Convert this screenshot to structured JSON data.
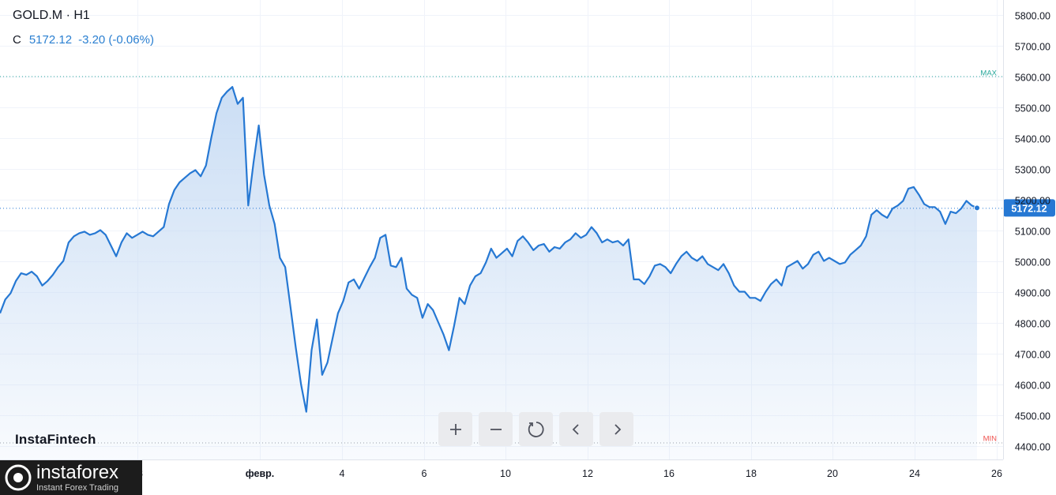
{
  "header": {
    "title": "GOLD.M · H1",
    "ohlc_label": "C",
    "last_value": "5172.12",
    "change": "-3.20 (-0.06%)"
  },
  "watermark": "InstaFintech",
  "brand": {
    "name": "instaforex",
    "tagline": "Instant Forex Trading"
  },
  "controls": [
    "zoom-in",
    "zoom-out",
    "reset",
    "scroll-left",
    "scroll-right"
  ],
  "colors": {
    "line": "#2678d3",
    "fill": "#c8dcf4",
    "max": "#26a69a",
    "min": "#ef5350",
    "grid": "#f0f3fa",
    "axis_text": "#131722"
  },
  "chart_data": {
    "type": "area",
    "ylim": [
      4400,
      5800
    ],
    "y_ticks": [
      "4400.00",
      "4500.00",
      "4600.00",
      "4700.00",
      "4800.00",
      "4900.00",
      "5000.00",
      "5100.00",
      "5200.00",
      "5300.00",
      "5400.00",
      "5500.00",
      "5600.00",
      "5700.00",
      "5800.00"
    ],
    "x_ticks": [
      "28",
      "февр.",
      "4",
      "6",
      "10",
      "12",
      "16",
      "18",
      "20",
      "24",
      "26"
    ],
    "max_label": "MAX",
    "min_label": "MIN",
    "max_value": 5600,
    "min_value": 4400,
    "last_value": 5172.12,
    "last_label": "5172.12",
    "grid": true,
    "series": [
      {
        "values": [
          4830,
          4875,
          4895,
          4935,
          4960,
          4955,
          4965,
          4950,
          4920,
          4935,
          4955,
          4980,
          5000,
          5060,
          5080,
          5090,
          5095,
          5085,
          5090,
          5100,
          5085,
          5050,
          5015,
          5060,
          5090,
          5075,
          5085,
          5095,
          5085,
          5080,
          5095,
          5110,
          5185,
          5230,
          5255,
          5270,
          5285,
          5295,
          5275,
          5310,
          5400,
          5480,
          5530,
          5550,
          5565,
          5510,
          5530,
          5180,
          5320,
          5440,
          5280,
          5180,
          5120,
          5010,
          4980,
          4850,
          4720,
          4600,
          4510,
          4710,
          4810,
          4630,
          4670,
          4750,
          4830,
          4870,
          4930,
          4940,
          4910,
          4945,
          4980,
          5010,
          5075,
          5085,
          4985,
          4980,
          5010,
          4910,
          4890,
          4880,
          4815,
          4860,
          4840,
          4800,
          4760,
          4710,
          4790,
          4880,
          4860,
          4920,
          4950,
          4960,
          4995,
          5040,
          5010,
          5025,
          5040,
          5015,
          5065,
          5080,
          5060,
          5035,
          5050,
          5055,
          5030,
          5045,
          5040,
          5060,
          5070,
          5090,
          5075,
          5085,
          5110,
          5090,
          5060,
          5070,
          5060,
          5065,
          5050,
          5070,
          4940,
          4940,
          4925,
          4950,
          4985,
          4990,
          4980,
          4960,
          4990,
          5015,
          5030,
          5010,
          5000,
          5015,
          4990,
          4980,
          4970,
          4990,
          4960,
          4920,
          4900,
          4900,
          4880,
          4880,
          4870,
          4900,
          4925,
          4940,
          4920,
          4980,
          4990,
          5000,
          4975,
          4990,
          5020,
          5030,
          5000,
          5010,
          5000,
          4990,
          4995,
          5020,
          5035,
          5050,
          5080,
          5150,
          5165,
          5150,
          5140,
          5170,
          5180,
          5195,
          5235,
          5240,
          5215,
          5185,
          5175,
          5175,
          5160,
          5120,
          5160,
          5155,
          5170,
          5195,
          5180,
          5172.12
        ]
      }
    ]
  }
}
